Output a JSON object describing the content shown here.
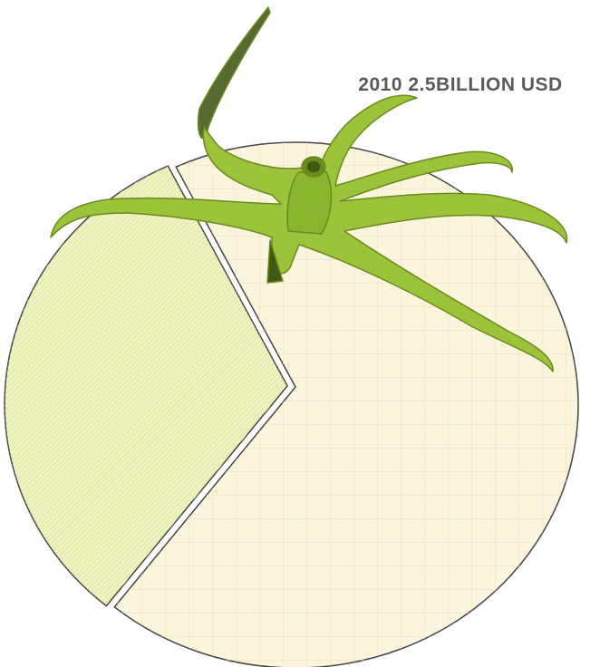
{
  "chart_data": {
    "type": "pie",
    "title": "2010 2.5BILLION USD",
    "values": [
      68,
      32
    ],
    "colors": [
      "#fbf5dd",
      "#eef2c0"
    ]
  }
}
